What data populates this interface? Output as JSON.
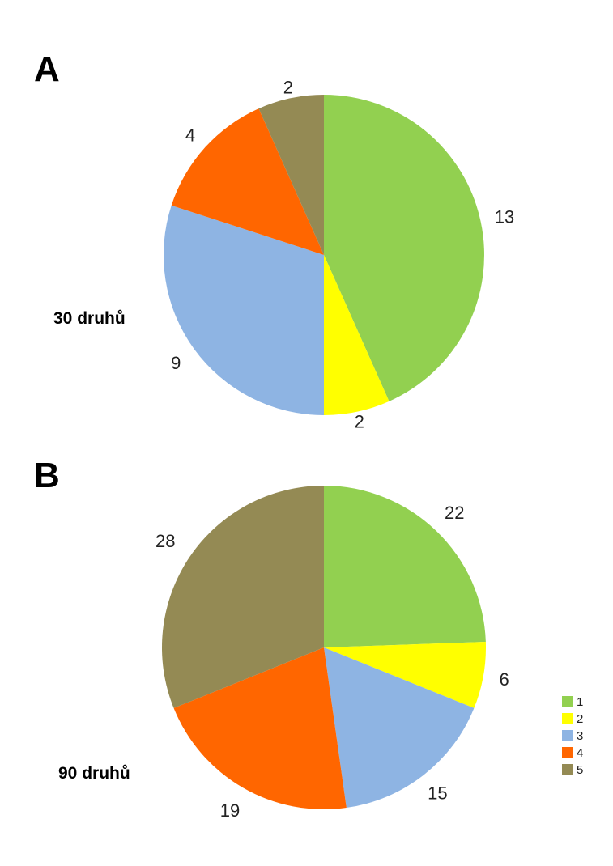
{
  "chart_data": [
    {
      "type": "pie",
      "panel": "A",
      "note": "30 druhů",
      "categories": [
        "1",
        "2",
        "3",
        "4",
        "5"
      ],
      "values": [
        13,
        2,
        9,
        4,
        2
      ],
      "colors": [
        "#92d050",
        "#ffff00",
        "#8eb4e3",
        "#ff6600",
        "#948a54"
      ]
    },
    {
      "type": "pie",
      "panel": "B",
      "note": "90 druhů",
      "categories": [
        "1",
        "2",
        "3",
        "4",
        "5"
      ],
      "values": [
        22,
        6,
        15,
        19,
        28
      ],
      "colors": [
        "#92d050",
        "#ffff00",
        "#8eb4e3",
        "#ff6600",
        "#948a54"
      ]
    }
  ],
  "legend": {
    "placement": "bottom-right",
    "items": [
      {
        "label": "1",
        "color": "#92d050"
      },
      {
        "label": "2",
        "color": "#ffff00"
      },
      {
        "label": "3",
        "color": "#8eb4e3"
      },
      {
        "label": "4",
        "color": "#ff6600"
      },
      {
        "label": "5",
        "color": "#948a54"
      }
    ]
  }
}
